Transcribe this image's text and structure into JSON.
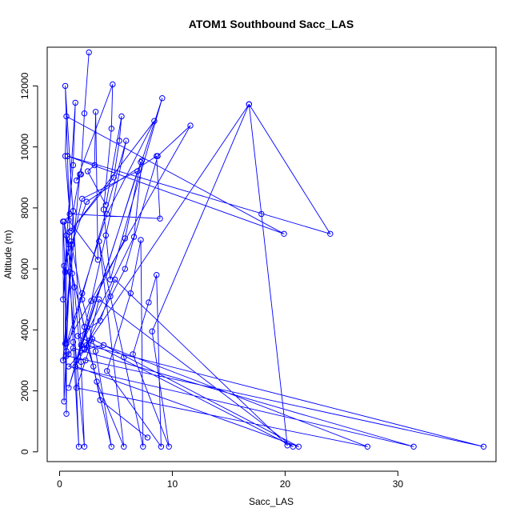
{
  "chart_data": {
    "type": "line",
    "title": "ATOM1 Southbound Sacc_LAS",
    "xlabel": "Sacc_LAS",
    "ylabel": "Altitude (m)",
    "xlim": [
      -1.1,
      38.7
    ],
    "ylim": [
      -320,
      13270
    ],
    "x_ticks": [
      0,
      10,
      20,
      30
    ],
    "y_ticks": [
      0,
      2000,
      4000,
      6000,
      8000,
      10000,
      12000
    ],
    "grid": false,
    "legend": "none",
    "series_color": "#0000ff",
    "series": [
      {
        "points": [
          [
            2.6,
            13100
          ],
          [
            2.2,
            11100
          ],
          [
            1.9,
            9100
          ],
          [
            1.5,
            8900
          ],
          [
            4.7,
            12050
          ],
          [
            4.6,
            10600
          ],
          [
            3.9,
            7950
          ],
          [
            4.5,
            5650
          ],
          [
            9.1,
            11600
          ],
          [
            7.3,
            9550
          ],
          [
            6.6,
            7050
          ],
          [
            1.9,
            3500
          ],
          [
            0.5,
            12000
          ],
          [
            0.7,
            9700
          ],
          [
            0.9,
            7200
          ],
          [
            0.3,
            5000
          ],
          [
            1.4,
            11450
          ],
          [
            1.2,
            9400
          ],
          [
            0.8,
            7600
          ],
          [
            3.4,
            6300
          ],
          [
            3.2,
            11150
          ],
          [
            3.1,
            9400
          ],
          [
            2.5,
            9200
          ],
          [
            4.1,
            8100
          ],
          [
            5.5,
            11000
          ],
          [
            5.3,
            10200
          ],
          [
            4.8,
            9000
          ],
          [
            1.0,
            7250
          ],
          [
            8.4,
            10850
          ],
          [
            4.2,
            7800
          ],
          [
            2.0,
            5200
          ],
          [
            0.6,
            3550
          ],
          [
            11.6,
            10700
          ],
          [
            8.7,
            9700
          ],
          [
            5.8,
            6000
          ],
          [
            2.2,
            3400
          ],
          [
            16.8,
            11400
          ],
          [
            24.0,
            7150
          ],
          [
            0.7,
            9700
          ],
          [
            19.9,
            7150
          ],
          [
            0.6,
            11000
          ],
          [
            0.5,
            9700
          ],
          [
            0.9,
            7800
          ],
          [
            8.9,
            7650
          ],
          [
            8.6,
            9700
          ],
          [
            2.4,
            8200
          ],
          [
            0.4,
            6100
          ],
          [
            0.6,
            3300
          ],
          [
            5.9,
            10200
          ],
          [
            4.1,
            7100
          ],
          [
            2.8,
            4950
          ],
          [
            1.5,
            3000
          ],
          [
            7.2,
            9500
          ],
          [
            5.8,
            7000
          ],
          [
            3.1,
            5000
          ],
          [
            0.8,
            2100
          ],
          [
            6.9,
            9200
          ],
          [
            2.0,
            8300
          ],
          [
            1.1,
            6800
          ],
          [
            0.3,
            3000
          ],
          [
            1.8,
            9100
          ],
          [
            1.2,
            7900
          ],
          [
            0.9,
            5900
          ],
          [
            0.4,
            1650
          ],
          [
            0.3,
            7550
          ],
          [
            0.5,
            5900
          ],
          [
            0.5,
            3550
          ],
          [
            0.6,
            1250
          ],
          [
            0.6,
            7100
          ],
          [
            1.3,
            5400
          ],
          [
            1.9,
            2950
          ],
          [
            2.2,
            170
          ],
          [
            0.4,
            7550
          ],
          [
            0.8,
            6800
          ],
          [
            1.2,
            3600
          ],
          [
            1.7,
            170
          ],
          [
            1.0,
            6900
          ],
          [
            2.0,
            5000
          ],
          [
            3.2,
            3300
          ],
          [
            4.6,
            170
          ],
          [
            1.1,
            5850
          ],
          [
            2.2,
            4100
          ],
          [
            3.3,
            2300
          ],
          [
            5.7,
            170
          ],
          [
            3.5,
            6900
          ],
          [
            4.5,
            5100
          ],
          [
            5.7,
            3100
          ],
          [
            7.4,
            170
          ],
          [
            7.2,
            6950
          ],
          [
            6.3,
            5200
          ],
          [
            4.2,
            2650
          ],
          [
            9.0,
            170
          ],
          [
            8.6,
            5800
          ],
          [
            7.9,
            4900
          ],
          [
            6.5,
            3200
          ],
          [
            9.7,
            170
          ],
          [
            8.2,
            3950
          ],
          [
            16.8,
            11400
          ],
          [
            17.9,
            7800
          ],
          [
            20.2,
            210
          ],
          [
            4.9,
            5650
          ],
          [
            3.6,
            4300
          ],
          [
            1.6,
            3800
          ],
          [
            20.7,
            170
          ],
          [
            3.5,
            5000
          ],
          [
            2.6,
            3650
          ],
          [
            1.4,
            2800
          ],
          [
            21.2,
            170
          ],
          [
            2.9,
            3700
          ],
          [
            2.3,
            3000
          ],
          [
            1.5,
            2100
          ],
          [
            27.3,
            170
          ],
          [
            3.9,
            3500
          ],
          [
            2.2,
            3350
          ],
          [
            0.8,
            2800
          ],
          [
            31.4,
            170
          ],
          [
            1.2,
            3400
          ],
          [
            0.8,
            3200
          ],
          [
            0.6,
            3150
          ],
          [
            37.6,
            170
          ],
          [
            2.4,
            3500
          ],
          [
            3.0,
            2800
          ],
          [
            3.6,
            1700
          ],
          [
            7.8,
            470
          ]
        ]
      }
    ]
  }
}
